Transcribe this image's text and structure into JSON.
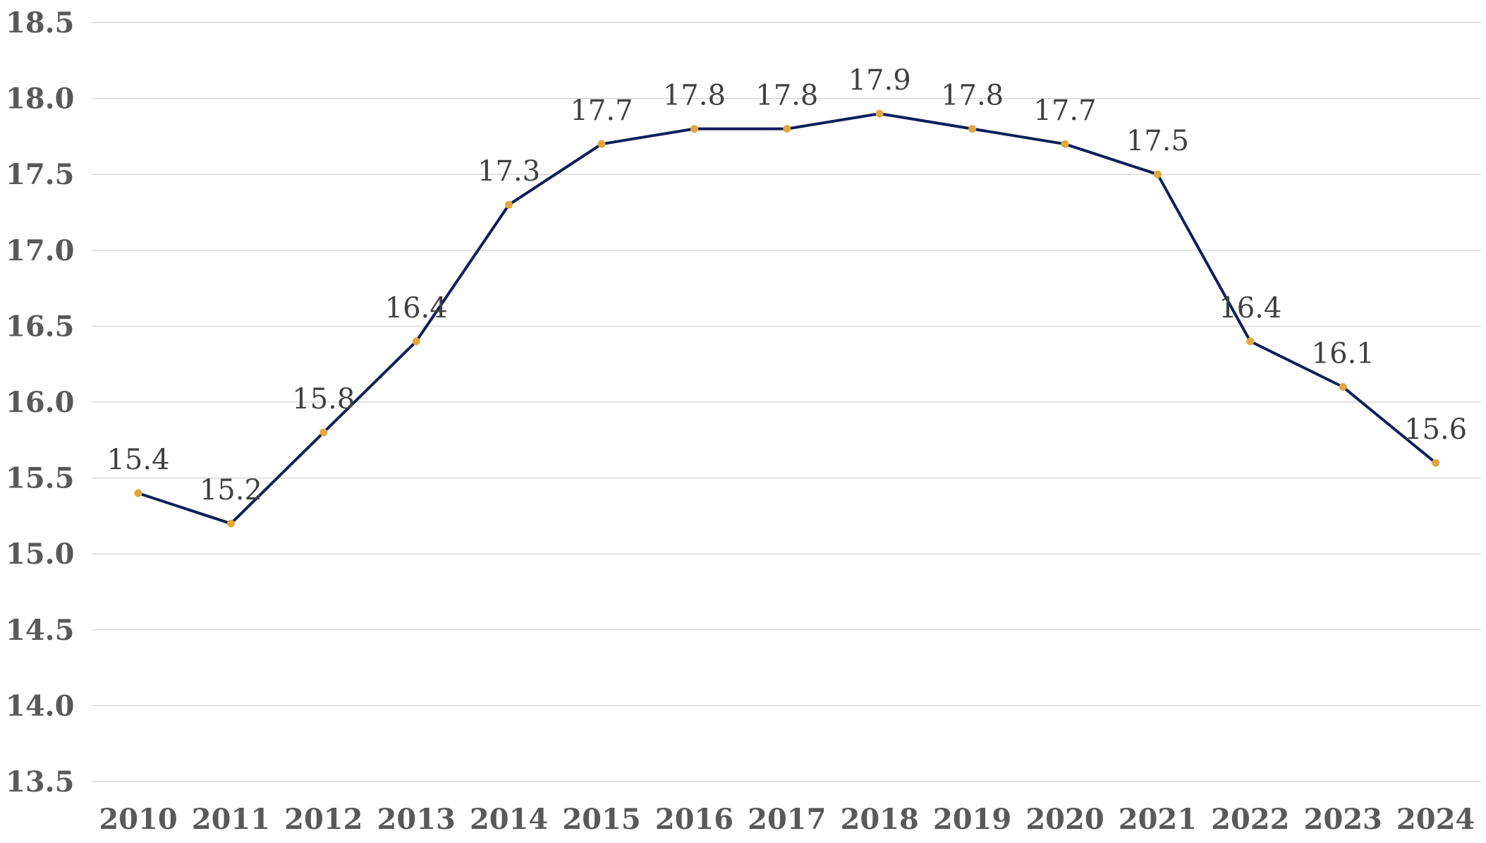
{
  "chart_data": {
    "type": "line",
    "title": "",
    "xlabel": "",
    "ylabel": "",
    "categories": [
      "2010",
      "2011",
      "2012",
      "2013",
      "2014",
      "2015",
      "2016",
      "2017",
      "2018",
      "2019",
      "2020",
      "2021",
      "2022",
      "2023",
      "2024"
    ],
    "series": [
      {
        "values": [
          15.4,
          15.2,
          15.8,
          16.4,
          17.3,
          17.7,
          17.8,
          17.8,
          17.9,
          17.8,
          17.7,
          17.5,
          16.4,
          16.1,
          15.6
        ],
        "labels": [
          "15.4",
          "15.2",
          "15.8",
          "16.4",
          "17.3",
          "17.7",
          "17.8",
          "17.8",
          "17.9",
          "17.8",
          "17.7",
          "17.5",
          "16.4",
          "16.1",
          "15.6"
        ],
        "line_color": "#0e1f5b",
        "marker_color": "#e2a73a"
      }
    ],
    "ylim": [
      13.5,
      18.5
    ],
    "yticks": [
      "13.5",
      "14.0",
      "14.5",
      "15.0",
      "15.5",
      "16.0",
      "16.5",
      "17.0",
      "17.5",
      "18.0",
      "18.5"
    ],
    "grid": true,
    "legend": "none"
  }
}
